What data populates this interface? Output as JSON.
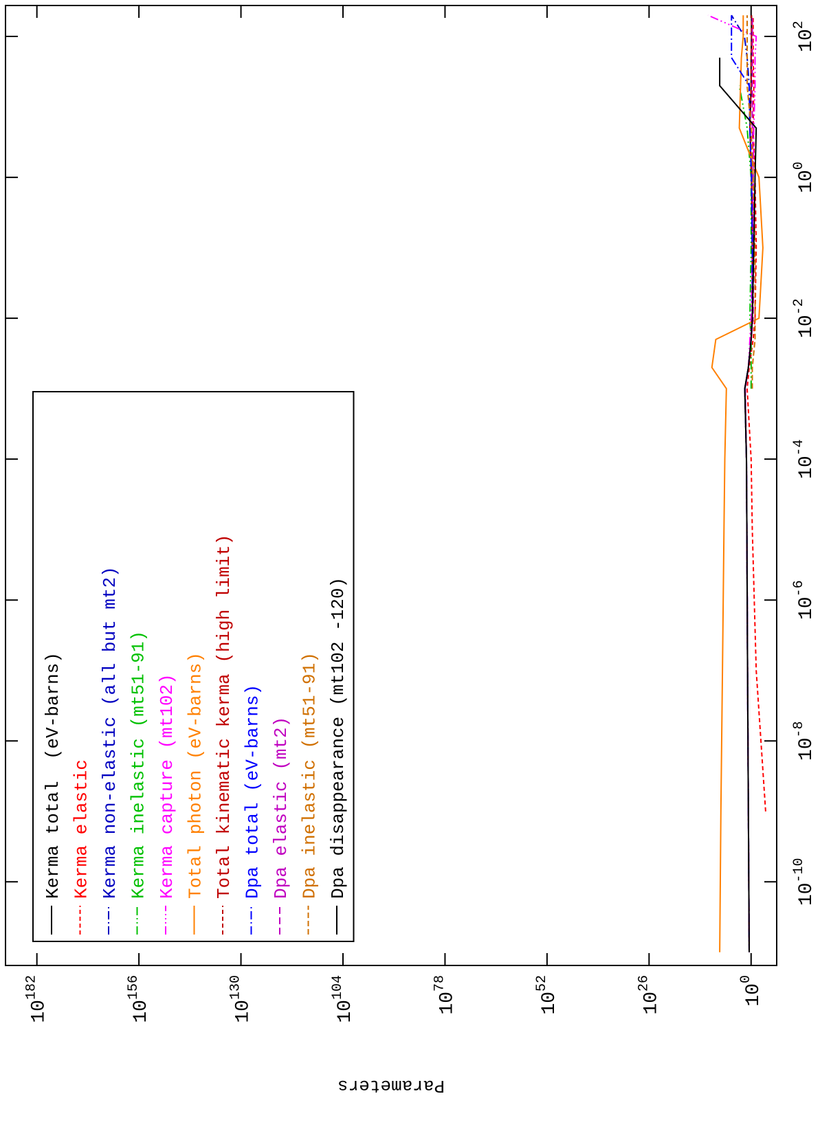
{
  "chart_data": {
    "type": "line",
    "ylabel": "Parameters",
    "log_x": true,
    "log_y": true,
    "xlim": [
      6.5e-12,
      275
    ],
    "ylim": [
      3e-07,
      1e+190
    ],
    "xticks": [
      {
        "value": 1e-10,
        "label": "10^-10"
      },
      {
        "value": 1e-08,
        "label": "10^-8"
      },
      {
        "value": 1e-06,
        "label": "10^-6"
      },
      {
        "value": 0.0001,
        "label": "10^-4"
      },
      {
        "value": 0.01,
        "label": "10^-2"
      },
      {
        "value": 1,
        "label": "10^0"
      },
      {
        "value": 100,
        "label": "10^2"
      }
    ],
    "yticks": [
      {
        "value": 1,
        "label": "10^0"
      },
      {
        "value": 1e+26,
        "label": "10^26"
      },
      {
        "value": 1e+52,
        "label": "10^52"
      },
      {
        "value": 1e+78,
        "label": "10^78"
      },
      {
        "value": 1e+104,
        "label": "10^104"
      },
      {
        "value": 1e+130,
        "label": "10^130"
      },
      {
        "value": 1e+156,
        "label": "10^156"
      },
      {
        "value": 1e+182,
        "label": "10^182"
      }
    ],
    "legend_position": "upper left",
    "x": [
      1e-11,
      1e-09,
      1e-07,
      1e-05,
      0.0001,
      0.001,
      0.002,
      0.005,
      0.01,
      0.1,
      1,
      5,
      20,
      50,
      100,
      200
    ],
    "series": [
      {
        "name": "Kerma total  (eV-barns)",
        "color": "#000000",
        "dash": "none",
        "values": [
          3,
          5,
          8,
          12,
          15,
          40,
          5,
          1,
          0.5,
          0.5,
          0.8,
          2,
          1,
          1,
          0.8,
          0.8
        ]
      },
      {
        "name": "Kerma elastic",
        "color": "#ff0000",
        "dash": "6,4",
        "values": [
          null,
          0.0002,
          0.05,
          0.5,
          1,
          10,
          3,
          0.3,
          0.1,
          0.05,
          0.1,
          0.3,
          0.2,
          0.3,
          0.3,
          0.3
        ]
      },
      {
        "name": "Kerma non-elastic (all but mt2)",
        "color": "#0000c0",
        "dash": "12,4,2,4",
        "values": [
          3,
          5,
          8,
          12,
          15,
          40,
          5,
          1,
          0.5,
          0.5,
          0.8,
          2,
          3,
          10,
          50,
          100000
        ]
      },
      {
        "name": "Kerma inelastic (mt51-91)",
        "color": "#00c000",
        "dash": "12,4,2,4,2,4",
        "values": [
          null,
          null,
          null,
          null,
          null,
          1,
          1,
          1,
          2,
          1,
          1,
          10,
          1000,
          null,
          null,
          null
        ]
      },
      {
        "name": "Kerma capture (mt102)",
        "color": "#ff00ff",
        "dash": "12,4,2,4,2,4,2,4",
        "values": [
          3,
          5,
          8,
          12,
          15,
          40,
          5,
          2,
          1,
          0.5,
          0.3,
          0.2,
          0.1,
          0.1,
          0.05,
          100000000000
        ]
      },
      {
        "name": "Total photon (eV-barns)",
        "color": "#ff8000",
        "dash": "none",
        "values": [
          100000000,
          50000000,
          20000000,
          8000000,
          5000000,
          2000000,
          10000000000,
          1000000000,
          0.01,
          0.001,
          0.01,
          1000,
          500,
          300,
          100,
          100
        ]
      },
      {
        "name": "Total kinematic kerma (high limit)",
        "color": "#c00000",
        "dash": "6,4",
        "values": [
          3,
          5,
          8,
          12,
          15,
          40,
          5,
          1,
          0.5,
          0.5,
          0.8,
          2,
          1,
          1,
          0.8,
          0.8
        ]
      },
      {
        "name": "Dpa total (eV-barns)",
        "color": "#0000ff",
        "dash": "12,4,2,4",
        "values": [
          3,
          5,
          8,
          12,
          15,
          40,
          5,
          1,
          0.5,
          0.5,
          0.8,
          2,
          3,
          100000,
          100000,
          100000
        ]
      },
      {
        "name": "Dpa elastic (mt2)",
        "color": "#c000c0",
        "dash": "10,5",
        "values": [
          3,
          5,
          8,
          12,
          15,
          30,
          5,
          1,
          0.3,
          0.2,
          0.3,
          0.5,
          0.5,
          0.5,
          0.5,
          0.5
        ]
      },
      {
        "name": "Dpa inelastic (mt51-91)",
        "color": "#d07000",
        "dash": "8,4",
        "values": [
          null,
          null,
          null,
          null,
          null,
          0.5,
          0.5,
          0.1,
          0.1,
          0.1,
          0.3,
          1,
          10,
          10,
          10,
          10
        ]
      },
      {
        "name": "Dpa disappearance (mt102 -120)",
        "color": "#000000",
        "dash": "none",
        "values": [
          3,
          5,
          8,
          12,
          15,
          40,
          5,
          1,
          0.5,
          0.2,
          0.1,
          0.05,
          100000000,
          100000000,
          null,
          null
        ]
      }
    ]
  }
}
